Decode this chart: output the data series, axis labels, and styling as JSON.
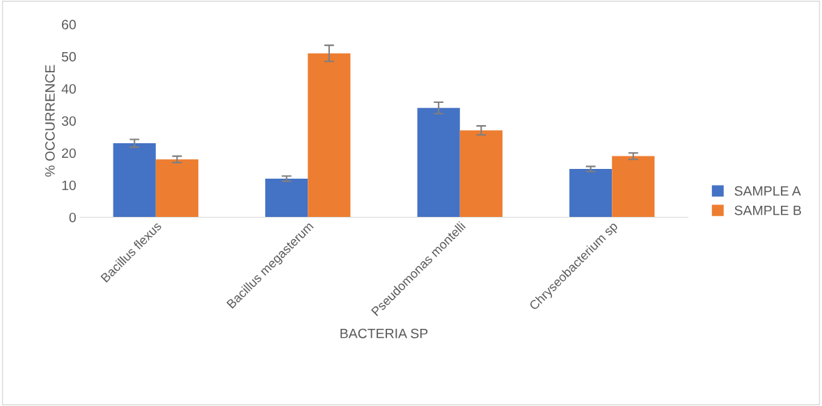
{
  "chart_data": {
    "type": "bar",
    "xlabel": "BACTERIA SP",
    "ylabel": "% OCCURRENCE",
    "categories": [
      "Bacillus flexus",
      "Bacillus megasterum",
      "Pseudomonas montelli",
      "Chryseobacterium sp"
    ],
    "series": [
      {
        "name": "SAMPLE A",
        "color": "#4472c4",
        "values": [
          23,
          12,
          34,
          15
        ],
        "errors": [
          1.2,
          0.8,
          1.8,
          0.8
        ]
      },
      {
        "name": "SAMPLE B",
        "color": "#ed7d31",
        "values": [
          18,
          51,
          27,
          19
        ],
        "errors": [
          1,
          2.5,
          1.4,
          1
        ]
      }
    ],
    "ylim": [
      0,
      60
    ],
    "yticks": [
      0,
      10,
      20,
      30,
      40,
      50,
      60
    ],
    "grid": false,
    "legend": "right"
  }
}
